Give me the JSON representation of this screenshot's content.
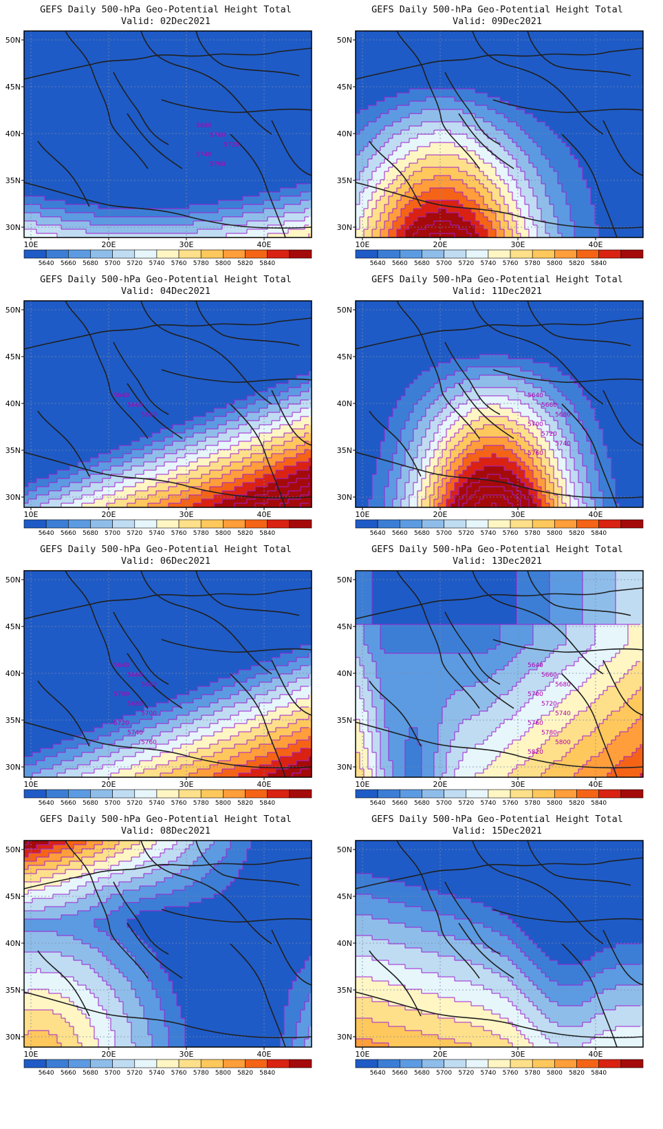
{
  "title_line1": "GEFS Daily 500-hPa Geo-Potential Height Total",
  "panels": [
    {
      "valid": "Valid: 02Dec2021",
      "pattern": "south",
      "strength": 0.8,
      "bend": 0.0,
      "labels": [
        "5680",
        "5700",
        "5720",
        "5740",
        "5760"
      ]
    },
    {
      "valid": "Valid: 09Dec2021",
      "pattern": "ridge_west",
      "strength": 0.9,
      "bend": 0.0,
      "labels": []
    },
    {
      "valid": "Valid: 04Dec2021",
      "pattern": "southeast",
      "strength": 1.2,
      "bend": 0.0,
      "labels": [
        "5640",
        "5660",
        "5680"
      ]
    },
    {
      "valid": "Valid: 11Dec2021",
      "pattern": "ridge_center",
      "strength": 1.3,
      "bend": 0.0,
      "labels": [
        "5640",
        "5660",
        "5680",
        "5700",
        "5720",
        "5740",
        "5760"
      ]
    },
    {
      "valid": "Valid: 06Dec2021",
      "pattern": "southeast",
      "strength": 1.0,
      "bend": 0.0,
      "labels": [
        "5640",
        "5660",
        "5680",
        "5700",
        "5680",
        "5700",
        "5720",
        "5740",
        "5760"
      ]
    },
    {
      "valid": "Valid: 13Dec2021",
      "pattern": "trough_west",
      "strength": 1.4,
      "bend": 0.0,
      "labels": [
        "5640",
        "5660",
        "5680",
        "5700",
        "5720",
        "5740",
        "5760",
        "5780",
        "5800",
        "5820"
      ]
    },
    {
      "valid": "Valid: 08Dec2021",
      "pattern": "sw_corner",
      "strength": 0.9,
      "bend": 0.0,
      "labels": []
    },
    {
      "valid": "Valid: 15Dec2021",
      "pattern": "wave",
      "strength": 1.0,
      "bend": 0.0,
      "labels": []
    }
  ],
  "lat_ticks": [
    "50N",
    "45N",
    "40N",
    "35N",
    "30N"
  ],
  "lon_ticks": [
    "10E",
    "20E",
    "30E",
    "40E"
  ],
  "colorbar_labels": [
    "5640",
    "5660",
    "5680",
    "5700",
    "5720",
    "5740",
    "5760",
    "5780",
    "5800",
    "5820",
    "5840"
  ],
  "colors": {
    "levels": [
      "#1f5bc6",
      "#3c7ed6",
      "#5c9be2",
      "#8fbdea",
      "#bfdcf2",
      "#e6f6fb",
      "#fff6c4",
      "#ffe08a",
      "#ffc85c",
      "#ff9e3a",
      "#f56416",
      "#d92212",
      "#a50a0a"
    ],
    "contour": "#a020d0",
    "land": "#1f1f1f"
  }
}
